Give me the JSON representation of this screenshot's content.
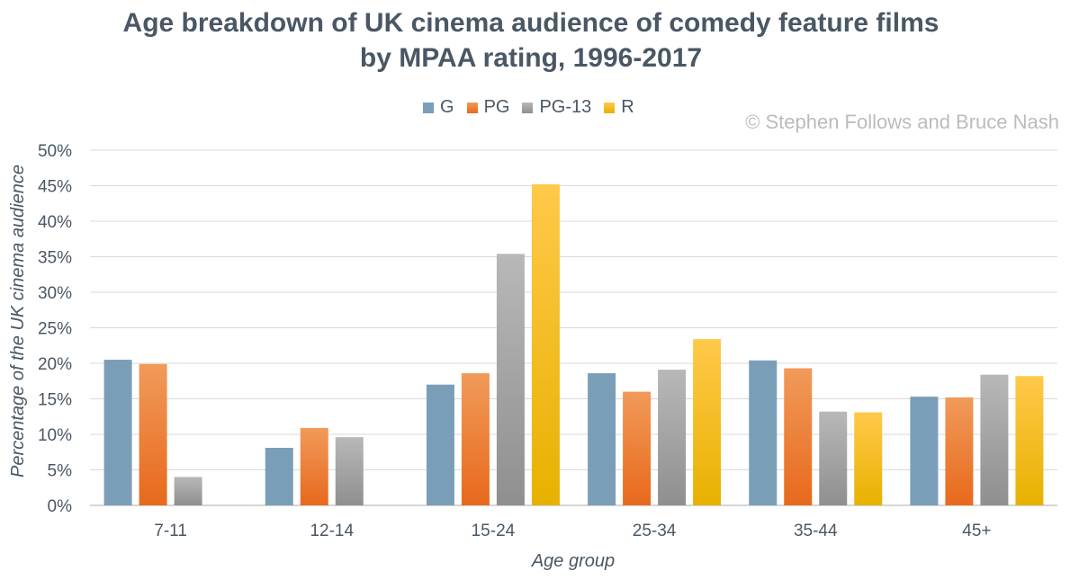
{
  "chart_data": {
    "type": "bar",
    "title": "Age breakdown of UK cinema audience of comedy feature films by MPAA rating, 1996-2017",
    "title_lines": [
      "Age breakdown of UK cinema audience of comedy feature films",
      "by MPAA rating, 1996-2017"
    ],
    "xlabel": "Age group",
    "ylabel": "Percentage of the UK cinema audience",
    "categories": [
      "7-11",
      "12-14",
      "15-24",
      "25-34",
      "35-44",
      "45+"
    ],
    "series": [
      {
        "name": "G",
        "values": [
          20.5,
          8.1,
          17.0,
          18.6,
          20.4,
          15.3
        ],
        "color_top": "#7b9eb8",
        "color_bottom": "#7b9eb8"
      },
      {
        "name": "PG",
        "values": [
          19.9,
          10.9,
          18.6,
          16.0,
          19.3,
          15.2
        ],
        "color_top": "#f19a5a",
        "color_bottom": "#e8691c"
      },
      {
        "name": "PG-13",
        "values": [
          4.0,
          9.6,
          35.4,
          19.1,
          13.2,
          18.4
        ],
        "color_top": "#b8b8b8",
        "color_bottom": "#8f8f8f"
      },
      {
        "name": "R",
        "values": [
          null,
          null,
          45.2,
          23.4,
          13.1,
          18.2
        ],
        "color_top": "#ffc94a",
        "color_bottom": "#e8b100"
      }
    ],
    "ylim": [
      0,
      50
    ],
    "yticks": [
      "0%",
      "5%",
      "10%",
      "15%",
      "20%",
      "25%",
      "30%",
      "35%",
      "40%",
      "45%",
      "50%"
    ],
    "grid": true,
    "legend_position": "top"
  },
  "watermark": "© Stephen Follows and Bruce Nash",
  "colors": {
    "text": "#4a5764",
    "grid": "#d9d9d9",
    "watermark": "#b9bcbf"
  }
}
